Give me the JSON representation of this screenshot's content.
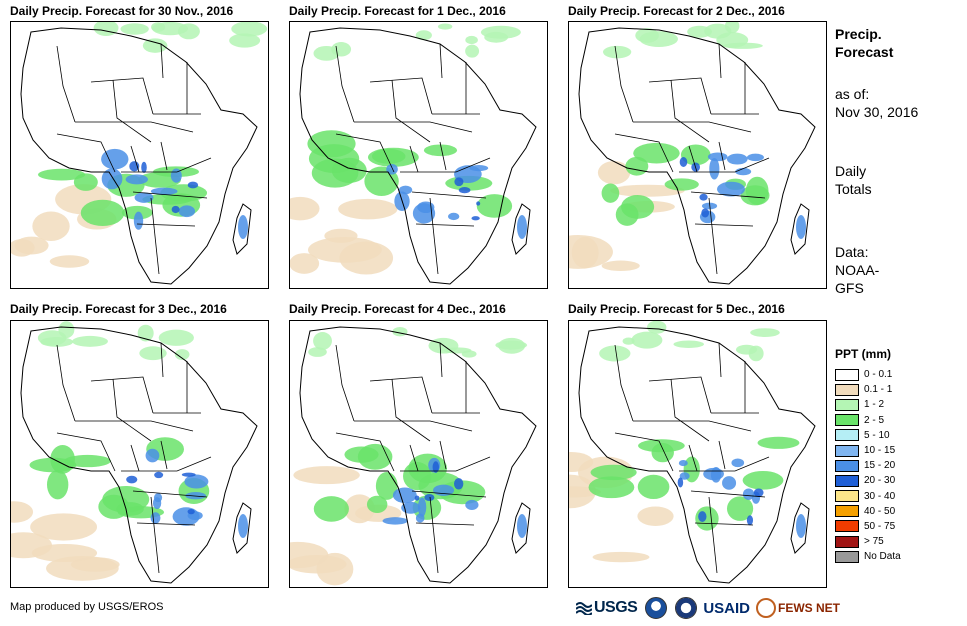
{
  "panels": [
    {
      "title": "Daily Precip. Forecast for 30 Nov., 2016"
    },
    {
      "title": "Daily Precip. Forecast for 1 Dec., 2016"
    },
    {
      "title": "Daily Precip. Forecast for 2 Dec., 2016"
    },
    {
      "title": "Daily Precip. Forecast for 3 Dec., 2016"
    },
    {
      "title": "Daily Precip. Forecast for 4 Dec., 2016"
    },
    {
      "title": "Daily Precip. Forecast for 5 Dec., 2016"
    }
  ],
  "sidebar": {
    "title_line1": "Precip.",
    "title_line2": "Forecast",
    "asof_label": "as of:",
    "asof_date": "Nov 30, 2016",
    "totals_line1": "Daily",
    "totals_line2": "Totals",
    "data_line1": "Data:",
    "data_line2": "NOAA-",
    "data_line3": "GFS"
  },
  "legend": {
    "title": "PPT (mm)",
    "items": [
      {
        "label": "0 - 0.1",
        "color": "#ffffff"
      },
      {
        "label": "0.1 - 1",
        "color": "#f1dcbd"
      },
      {
        "label": "1 - 2",
        "color": "#b4f5b4"
      },
      {
        "label": "2 - 5",
        "color": "#6ae36a"
      },
      {
        "label": "5 - 10",
        "color": "#b5eef5"
      },
      {
        "label": "10 - 15",
        "color": "#7fb5f0"
      },
      {
        "label": "15 - 20",
        "color": "#4a8fe6"
      },
      {
        "label": "20 - 30",
        "color": "#1f5fd6"
      },
      {
        "label": "30 - 40",
        "color": "#fde68a"
      },
      {
        "label": "40 - 50",
        "color": "#f5a000"
      },
      {
        "label": "50 - 75",
        "color": "#f03c00"
      },
      {
        "label": "> 75",
        "color": "#a01414"
      },
      {
        "label": "No Data",
        "color": "#999999"
      }
    ]
  },
  "footer": {
    "credit": "Map produced by USGS/EROS"
  },
  "logos": {
    "usgs": "USGS",
    "usaid": "USAID",
    "fews": "FEWS NET"
  }
}
